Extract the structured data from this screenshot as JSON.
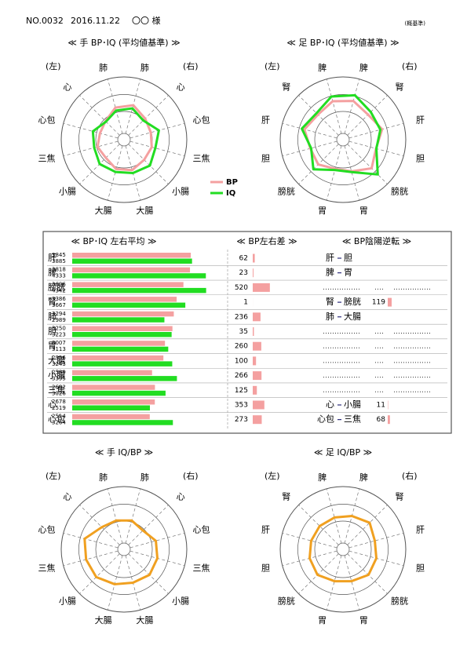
{
  "header": {
    "no": "NO.0032",
    "date": "2016.11.22",
    "name": "〇〇 様",
    "note": "(概基準)"
  },
  "chart_data": [
    {
      "type": "radar",
      "title": "≪ 手 BP･IQ (平均値基準) ≫",
      "left_label": "(左)",
      "right_label": "(右)",
      "axes": [
        "肺",
        "心",
        "心包",
        "三焦",
        "小腸",
        "大腸",
        "大腸",
        "小腸",
        "三焦",
        "心包",
        "心",
        "肺"
      ],
      "axis_colors": [
        "#00008b",
        "#00008b",
        "#00008b",
        "#800000",
        "#800000",
        "#800000",
        "#800000",
        "#800000",
        "#800000",
        "#00008b",
        "#00008b",
        "#00008b"
      ],
      "rlim": [
        0,
        6000
      ],
      "legend": "lower right",
      "series": [
        {
          "name": "BP",
          "color": "#f4a0a0",
          "values": [
            3412,
            2855,
            2650,
            2745,
            2722,
            3006,
            2906,
            2456,
            2620,
            2378,
            2502,
            3176
          ]
        },
        {
          "name": "IQ",
          "color": "#22dd22",
          "values": [
            3100,
            2600,
            3450,
            3100,
            3500,
            3300,
            3190,
            3290,
            2950,
            3080,
            2440,
            2880
          ]
        }
      ]
    },
    {
      "type": "radar",
      "title": "≪ 足 BP･IQ (平均値基準) ≫",
      "left_label": "(左)",
      "right_label": "(右)",
      "axes": [
        "脾",
        "腎",
        "肝",
        "胆",
        "膀胱",
        "胃",
        "胃",
        "膀胱",
        "胆",
        "肝",
        "腎",
        "脾"
      ],
      "axis_colors": [
        "#00008b",
        "#00008b",
        "#00008b",
        "#800000",
        "#800000",
        "#800000",
        "#800000",
        "#800000",
        "#800000",
        "#00008b",
        "#00008b",
        "#00008b"
      ],
      "rlim": [
        0,
        6000
      ],
      "series": [
        {
          "color": "#f4a0a0",
          "values": [
            3830,
            3386,
            3876,
            3268,
            3866,
            3137,
            2877,
            3346,
            3232,
            3814,
            3386,
            3807
          ]
        },
        {
          "color": "#22dd22",
          "values": [
            4400,
            3750,
            3700,
            3300,
            4700,
            3200,
            3000,
            4000,
            3150,
            4070,
            3580,
            4270
          ]
        }
      ]
    },
    {
      "type": "radar",
      "title": "≪ 手 IQ/BP ≫",
      "left_label": "(左)",
      "right_label": "(右)",
      "axes": [
        "肺",
        "心",
        "心包",
        "三焦",
        "小腸",
        "大腸",
        "大腸",
        "小腸",
        "三焦",
        "心包",
        "心",
        "肺"
      ],
      "axis_colors": [
        "#00008b",
        "#00008b",
        "#00008b",
        "#800000",
        "#800000",
        "#800000",
        "#800000",
        "#800000",
        "#800000",
        "#00008b",
        "#00008b",
        "#00008b"
      ],
      "rlim": [
        0,
        2
      ],
      "series": [
        {
          "color": "#f0a020",
          "values": [
            0.95,
            0.85,
            1.05,
            1.1,
            1.15,
            1.1,
            1.15,
            1.25,
            1.25,
            1.3,
            1.0,
            0.95
          ]
        }
      ]
    },
    {
      "type": "radar",
      "title": "≪ 足 IQ/BP ≫",
      "left_label": "(左)",
      "right_label": "(右)",
      "axes": [
        "脾",
        "腎",
        "肝",
        "胆",
        "膀胱",
        "胃",
        "胃",
        "膀胱",
        "胆",
        "肝",
        "腎",
        "脾"
      ],
      "axis_colors": [
        "#00008b",
        "#00008b",
        "#00008b",
        "#800000",
        "#800000",
        "#800000",
        "#800000",
        "#800000",
        "#800000",
        "#00008b",
        "#00008b",
        "#00008b"
      ],
      "rlim": [
        0,
        2
      ],
      "series": [
        {
          "color": "#f0a020",
          "values": [
            1.1,
            1.2,
            1.05,
            1.1,
            1.15,
            1.05,
            1.05,
            1.15,
            1.1,
            1.05,
            1.05,
            1.05
          ]
        }
      ]
    }
  ],
  "table": {
    "title_avg": "≪ BP･IQ 左右平均 ≫",
    "title_diff": "≪ BP左右差 ≫",
    "title_rev": "≪ BP陰陽逆転 ≫",
    "bar_xlim": [
      0,
      5000
    ],
    "diff_xlim": [
      0,
      1000
    ],
    "bp_color": "#f4a0a0",
    "iq_color": "#22dd22",
    "rows": [
      {
        "organ": "肝",
        "color": "#00008b",
        "bp": 3845,
        "iq": 3885,
        "diff": 62,
        "rev": {
          "a": "肝",
          "b": "胆"
        }
      },
      {
        "organ": "脾",
        "color": "#00008b",
        "bp": 3818,
        "iq": 4333,
        "diff": 23,
        "rev": {
          "a": "脾",
          "b": "胃"
        }
      },
      {
        "organ": "膀胱",
        "color": "#800000",
        "bp": 3606,
        "iq": 4342,
        "diff": 520,
        "rev": null
      },
      {
        "organ": "腎",
        "color": "#00008b",
        "bp": 3386,
        "iq": 3667,
        "diff": 1,
        "rev": {
          "a": "腎",
          "b": "膀胱",
          "value": 119
        }
      },
      {
        "organ": "肺",
        "color": "#00008b",
        "bp": 3294,
        "iq": 2989,
        "diff": 236,
        "rev": {
          "a": "肺",
          "b": "大腸"
        }
      },
      {
        "organ": "胆",
        "color": "#800000",
        "bp": 3250,
        "iq": 3223,
        "diff": 35,
        "rev": null
      },
      {
        "organ": "胃",
        "color": "#800000",
        "bp": 3007,
        "iq": 3113,
        "diff": 260,
        "rev": null
      },
      {
        "organ": "大腸",
        "color": "#800000",
        "bp": 2956,
        "iq": 3243,
        "diff": 100,
        "rev": null
      },
      {
        "organ": "小腸",
        "color": "#800000",
        "bp": 2589,
        "iq": 3395,
        "diff": 266,
        "rev": null
      },
      {
        "organ": "三焦",
        "color": "#800000",
        "bp": 2682,
        "iq": 3026,
        "diff": 125,
        "rev": null
      },
      {
        "organ": "心",
        "color": "#00008b",
        "bp": 2678,
        "iq": 2519,
        "diff": 353,
        "rev": {
          "a": "心",
          "b": "小腸",
          "value": 11
        }
      },
      {
        "organ": "心包",
        "color": "#00008b",
        "bp": 2514,
        "iq": 3264,
        "diff": 273,
        "rev": {
          "a": "心包",
          "b": "三焦",
          "value": 68
        }
      }
    ]
  }
}
